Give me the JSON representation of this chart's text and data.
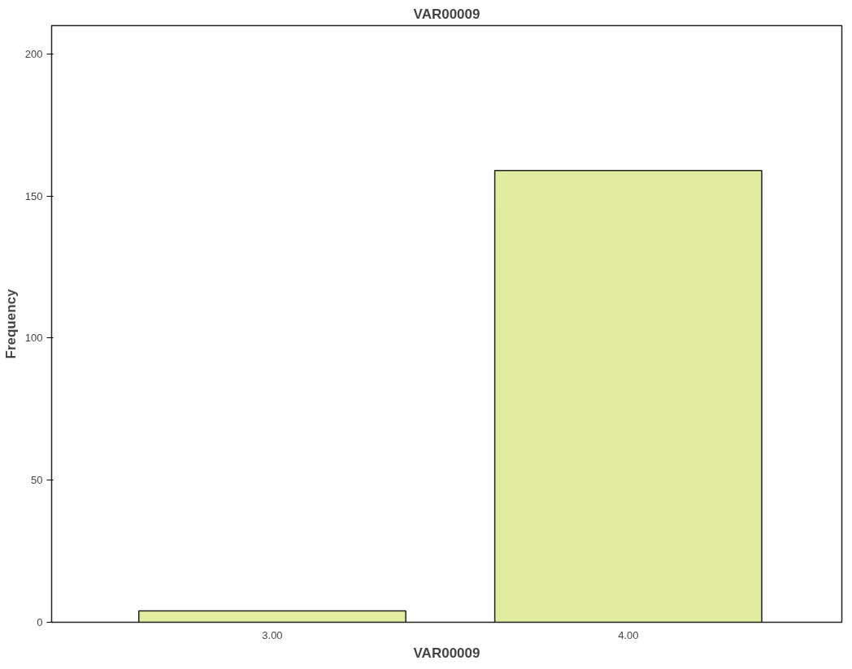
{
  "chart_data": {
    "type": "bar",
    "title": "VAR00009",
    "xlabel": "VAR00009",
    "ylabel": "Frequency",
    "categories": [
      "3.00",
      "4.00"
    ],
    "values": [
      4,
      159
    ],
    "color": "#e2eca0",
    "ylim": [
      0,
      210
    ],
    "yticks": [
      0,
      50,
      100,
      150,
      200
    ],
    "grid": false
  }
}
